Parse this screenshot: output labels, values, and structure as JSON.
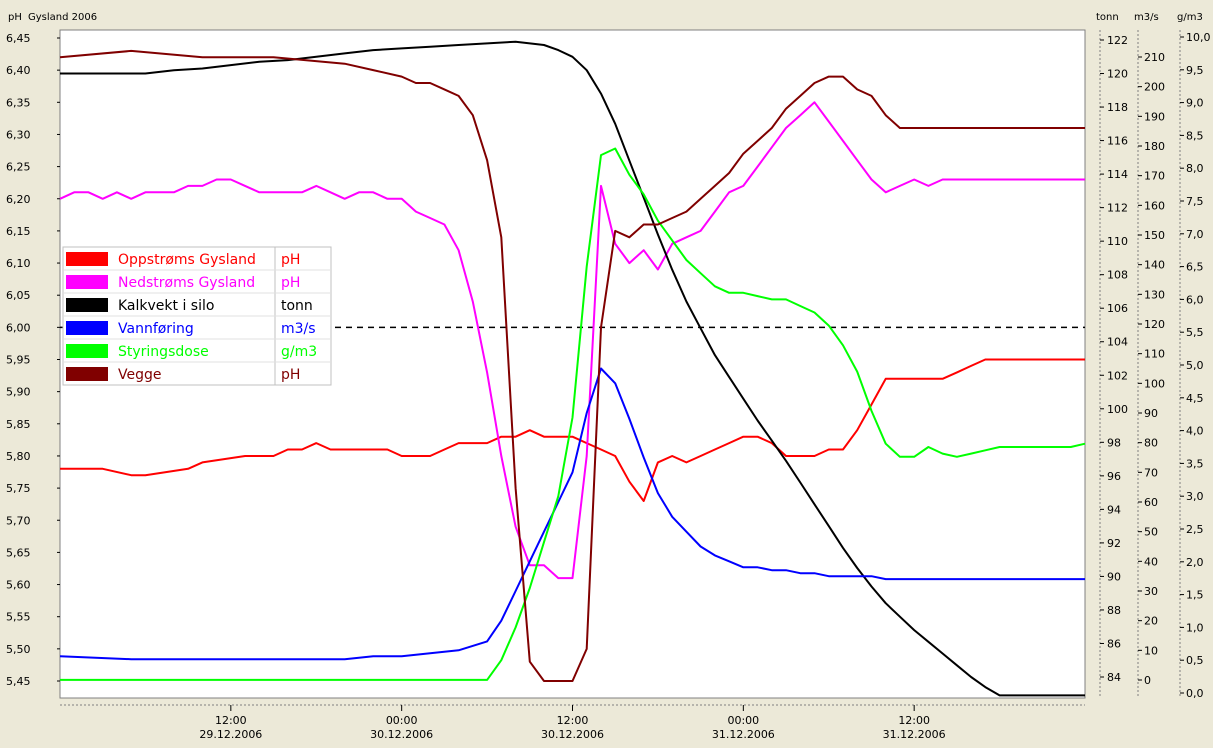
{
  "chart_data": {
    "type": "line",
    "title": "Gysland 2006",
    "axes": {
      "ph": {
        "label": "pH",
        "ylim": [
          5.43,
          6.45
        ],
        "ticks": [
          "6,45",
          "6,40",
          "6,35",
          "6,30",
          "6,25",
          "6,20",
          "6,15",
          "6,10",
          "6,05",
          "6,00",
          "5,95",
          "5,90",
          "5,85",
          "5,80",
          "5,75",
          "5,70",
          "5,65",
          "5,60",
          "5,55",
          "5,50",
          "5,45"
        ]
      },
      "tonn": {
        "label": "tonn",
        "ylim": [
          82.9,
          122.3
        ],
        "ticks": [
          "122",
          "120",
          "118",
          "116",
          "114",
          "112",
          "110",
          "108",
          "106",
          "104",
          "102",
          "100",
          "98",
          "96",
          "94",
          "92",
          "90",
          "88",
          "86",
          "84"
        ]
      },
      "m3s": {
        "label": "m3/s",
        "ylim": [
          -10,
          220
        ],
        "ticks": [
          "210",
          "200",
          "190",
          "180",
          "170",
          "160",
          "150",
          "140",
          "130",
          "120",
          "110",
          "100",
          "90",
          "80",
          "70",
          "60",
          "50",
          "40",
          "30",
          "20",
          "10",
          "0"
        ]
      },
      "gm3": {
        "label": "g/m3",
        "ylim": [
          0,
          10
        ],
        "ticks": [
          "10,0",
          "9,5",
          "9,0",
          "8,5",
          "8,0",
          "7,5",
          "7,0",
          "6,5",
          "6,0",
          "5,5",
          "5,0",
          "4,5",
          "4,0",
          "3,5",
          "3,0",
          "2,5",
          "2,0",
          "1,5",
          "1,0",
          "0,5",
          "0,0"
        ]
      }
    },
    "x_ticks": [
      {
        "time": "12:00",
        "date": "29.12.2006"
      },
      {
        "time": "00:00",
        "date": "30.12.2006"
      },
      {
        "time": "12:00",
        "date": "30.12.2006"
      },
      {
        "time": "00:00",
        "date": "31.12.2006"
      },
      {
        "time": "12:00",
        "date": "31.12.2006"
      }
    ],
    "reference_line": {
      "axis": "ph",
      "value": 6.0,
      "style": "dashed"
    },
    "legend_position": "left",
    "series": [
      {
        "name": "Oppstrøms Gysland",
        "unit": "pH",
        "axis": "ph",
        "color": "#ff0000",
        "x": [
          0,
          3,
          5,
          6,
          9,
          10,
          13,
          14,
          15,
          16,
          17,
          18,
          19,
          20,
          21,
          22,
          23,
          24,
          25,
          26,
          27,
          28,
          29,
          30,
          31,
          32,
          33,
          34,
          35,
          36,
          37,
          38,
          39,
          40,
          41,
          42,
          43,
          44,
          45,
          46,
          47,
          48,
          49,
          50,
          51,
          52,
          53,
          54,
          55,
          56,
          57,
          58,
          59,
          60,
          61,
          62,
          63,
          64,
          65,
          66,
          67,
          68,
          69,
          70,
          71,
          72
        ],
        "y": [
          5.78,
          5.78,
          5.77,
          5.77,
          5.78,
          5.79,
          5.8,
          5.8,
          5.8,
          5.81,
          5.81,
          5.82,
          5.81,
          5.81,
          5.81,
          5.81,
          5.81,
          5.8,
          5.8,
          5.8,
          5.81,
          5.82,
          5.82,
          5.82,
          5.83,
          5.83,
          5.84,
          5.83,
          5.83,
          5.83,
          5.82,
          5.81,
          5.8,
          5.76,
          5.73,
          5.79,
          5.8,
          5.79,
          5.8,
          5.81,
          5.82,
          5.83,
          5.83,
          5.82,
          5.8,
          5.8,
          5.8,
          5.81,
          5.81,
          5.84,
          5.88,
          5.92,
          5.92,
          5.92,
          5.92,
          5.92,
          5.93,
          5.94,
          5.95,
          5.95,
          5.95,
          5.95,
          5.95,
          5.95,
          5.95,
          5.95
        ]
      },
      {
        "name": "Nedstrøms Gysland",
        "unit": "pH",
        "axis": "ph",
        "color": "#ff00ff",
        "x": [
          0,
          1,
          2,
          3,
          4,
          5,
          6,
          7,
          8,
          9,
          10,
          11,
          12,
          13,
          14,
          15,
          16,
          17,
          18,
          19,
          20,
          21,
          22,
          23,
          24,
          25,
          26,
          27,
          28,
          29,
          30,
          31,
          32,
          33,
          34,
          35,
          36,
          37,
          38,
          39,
          40,
          41,
          42,
          43,
          44,
          45,
          46,
          47,
          48,
          49,
          50,
          51,
          52,
          53,
          54,
          55,
          56,
          57,
          58,
          59,
          60,
          61,
          62,
          63,
          64,
          65,
          66,
          67,
          68,
          69,
          70,
          71,
          72
        ],
        "y": [
          6.2,
          6.21,
          6.21,
          6.2,
          6.21,
          6.2,
          6.21,
          6.21,
          6.21,
          6.22,
          6.22,
          6.23,
          6.23,
          6.22,
          6.21,
          6.21,
          6.21,
          6.21,
          6.22,
          6.21,
          6.2,
          6.21,
          6.21,
          6.2,
          6.2,
          6.18,
          6.17,
          6.16,
          6.12,
          6.04,
          5.93,
          5.8,
          5.69,
          5.63,
          5.63,
          5.61,
          5.61,
          5.8,
          6.22,
          6.13,
          6.1,
          6.12,
          6.09,
          6.13,
          6.14,
          6.15,
          6.18,
          6.21,
          6.22,
          6.25,
          6.28,
          6.31,
          6.33,
          6.35,
          6.32,
          6.29,
          6.26,
          6.23,
          6.21,
          6.22,
          6.23,
          6.22,
          6.23,
          6.23,
          6.23,
          6.23,
          6.23,
          6.23,
          6.23,
          6.23,
          6.23,
          6.23,
          6.23
        ]
      },
      {
        "name": "Kalkvekt i silo",
        "unit": "tonn",
        "axis": "tonn",
        "color": "#000000",
        "x": [
          0,
          4,
          6,
          8,
          10,
          12,
          14,
          16,
          18,
          20,
          22,
          24,
          26,
          28,
          30,
          32,
          34,
          35,
          36,
          37,
          38,
          39,
          40,
          41,
          42,
          43,
          44,
          45,
          46,
          47,
          48,
          49,
          50,
          51,
          52,
          53,
          54,
          55,
          56,
          57,
          58,
          59,
          60,
          61,
          62,
          63,
          64,
          65,
          66,
          67,
          68,
          69,
          70,
          71,
          72
        ],
        "y": [
          120.0,
          120.0,
          120.0,
          120.2,
          120.3,
          120.5,
          120.7,
          120.8,
          121.0,
          121.2,
          121.4,
          121.5,
          121.6,
          121.7,
          121.8,
          121.9,
          121.7,
          121.4,
          121.0,
          120.2,
          118.8,
          117.0,
          114.8,
          112.6,
          110.4,
          108.3,
          106.4,
          104.8,
          103.2,
          101.9,
          100.6,
          99.3,
          98.1,
          96.9,
          95.6,
          94.3,
          93.0,
          91.7,
          90.5,
          89.4,
          88.4,
          87.6,
          86.8,
          86.1,
          85.4,
          84.7,
          84.0,
          83.4,
          82.9,
          82.9,
          82.9,
          82.9,
          82.9,
          82.9,
          82.9
        ]
      },
      {
        "name": "Vannføring",
        "unit": "m3/s",
        "axis": "m3s",
        "color": "#0000ff",
        "x": [
          0,
          5,
          10,
          15,
          20,
          22,
          24,
          26,
          28,
          30,
          31,
          32,
          33,
          34,
          35,
          36,
          37,
          38,
          39,
          40,
          41,
          42,
          43,
          44,
          45,
          46,
          47,
          48,
          49,
          50,
          51,
          52,
          53,
          54,
          55,
          56,
          57,
          58,
          59,
          60,
          61,
          62,
          63,
          64,
          65,
          66,
          67,
          68,
          69,
          70,
          71,
          72
        ],
        "y": [
          8,
          7,
          7,
          7,
          7,
          8,
          8,
          9,
          10,
          13,
          20,
          30,
          40,
          50,
          60,
          70,
          90,
          105,
          100,
          88,
          75,
          63,
          55,
          50,
          45,
          42,
          40,
          38,
          38,
          37,
          37,
          36,
          36,
          35,
          35,
          35,
          35,
          34,
          34,
          34,
          34,
          34,
          34,
          34,
          34,
          34,
          34,
          34,
          34,
          34,
          34,
          34
        ]
      },
      {
        "name": "Styringsdose",
        "unit": "g/m3",
        "axis": "gm3",
        "color": "#00ff00",
        "x": [
          0,
          10,
          20,
          25,
          26,
          27,
          28,
          29,
          30,
          31,
          32,
          33,
          34,
          35,
          36,
          37,
          38,
          39,
          40,
          41,
          42,
          43,
          44,
          45,
          46,
          47,
          48,
          49,
          50,
          51,
          52,
          53,
          54,
          55,
          56,
          57,
          58,
          59,
          60,
          61,
          62,
          63,
          64,
          65,
          66,
          67,
          68,
          69,
          70,
          71,
          72
        ],
        "y": [
          0.2,
          0.2,
          0.2,
          0.2,
          0.2,
          0.2,
          0.2,
          0.2,
          0.2,
          0.5,
          1.0,
          1.6,
          2.3,
          3.0,
          4.2,
          6.5,
          8.2,
          8.3,
          7.9,
          7.6,
          7.2,
          6.9,
          6.6,
          6.4,
          6.2,
          6.1,
          6.1,
          6.05,
          6.0,
          6.0,
          5.9,
          5.8,
          5.6,
          5.3,
          4.9,
          4.3,
          3.8,
          3.6,
          3.6,
          3.75,
          3.65,
          3.6,
          3.65,
          3.7,
          3.75,
          3.75,
          3.75,
          3.75,
          3.75,
          3.75,
          3.8
        ]
      },
      {
        "name": "Vegge",
        "unit": "pH",
        "axis": "ph",
        "color": "#800000",
        "x": [
          0,
          5,
          10,
          15,
          20,
          22,
          24,
          25,
          26,
          27,
          28,
          29,
          30,
          31,
          32,
          33,
          34,
          35,
          36,
          37,
          38,
          39,
          40,
          41,
          42,
          43,
          44,
          45,
          46,
          47,
          48,
          49,
          50,
          51,
          52,
          53,
          54,
          55,
          56,
          57,
          58,
          59,
          60,
          61,
          62,
          63,
          64,
          65,
          66,
          67,
          68,
          69,
          70,
          71,
          72
        ],
        "y": [
          6.42,
          6.43,
          6.42,
          6.42,
          6.41,
          6.4,
          6.39,
          6.38,
          6.38,
          6.37,
          6.36,
          6.33,
          6.26,
          6.14,
          5.75,
          5.48,
          5.45,
          5.45,
          5.45,
          5.5,
          6.0,
          6.15,
          6.14,
          6.16,
          6.16,
          6.17,
          6.18,
          6.2,
          6.22,
          6.24,
          6.27,
          6.29,
          6.31,
          6.34,
          6.36,
          6.38,
          6.39,
          6.39,
          6.37,
          6.36,
          6.33,
          6.31,
          6.31,
          6.31,
          6.31,
          6.31,
          6.31,
          6.31,
          6.31,
          6.31,
          6.31,
          6.31,
          6.31,
          6.31,
          6.31
        ]
      }
    ]
  }
}
